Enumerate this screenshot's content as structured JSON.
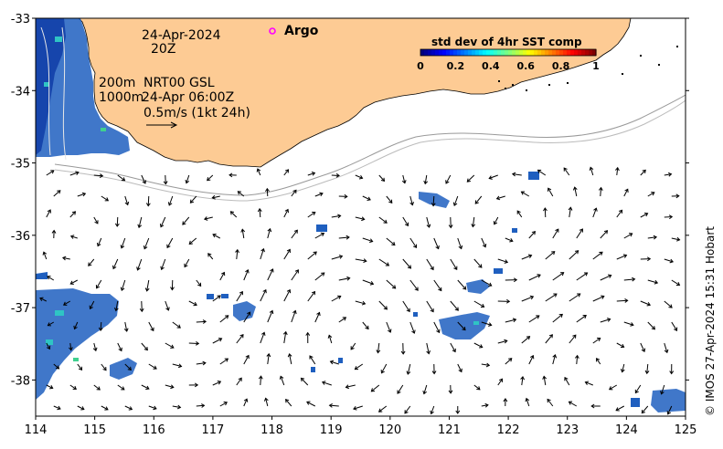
{
  "map": {
    "lon_range": [
      114,
      125
    ],
    "lat_range": [
      -38.5,
      -33
    ],
    "x_ticks": [
      "114",
      "115",
      "116",
      "117",
      "118",
      "119",
      "120",
      "121",
      "122",
      "123",
      "124",
      "125"
    ],
    "y_ticks": [
      "-33",
      "-34",
      "-35",
      "-36",
      "-37",
      "-38"
    ],
    "land_color": "#fdcb94",
    "ocean_color": "#ffffff"
  },
  "annotations": {
    "date": "24-Apr-2024",
    "time": "20Z",
    "depth_200": "200m",
    "depth_1000": "1000m",
    "product": "NRT00 GSL",
    "product_time": "24-Apr 06:00Z",
    "velocity_scale": "0.5m/s (1kt 24h)"
  },
  "legend": {
    "argo_label": "Argo",
    "argo_color": "#ff00ff"
  },
  "colorbar": {
    "title": "std dev of 4hr SST comp",
    "ticks": [
      "0",
      "0.2",
      "0.4",
      "0.6",
      "0.8",
      "1"
    ],
    "colors": [
      "#00007f",
      "#0000ff",
      "#007fff",
      "#00ffff",
      "#7fff7f",
      "#ffff00",
      "#ff7f00",
      "#ff0000",
      "#7f0000"
    ]
  },
  "credit": "© IMOS 27-Apr-2024 15:31 Hobart"
}
